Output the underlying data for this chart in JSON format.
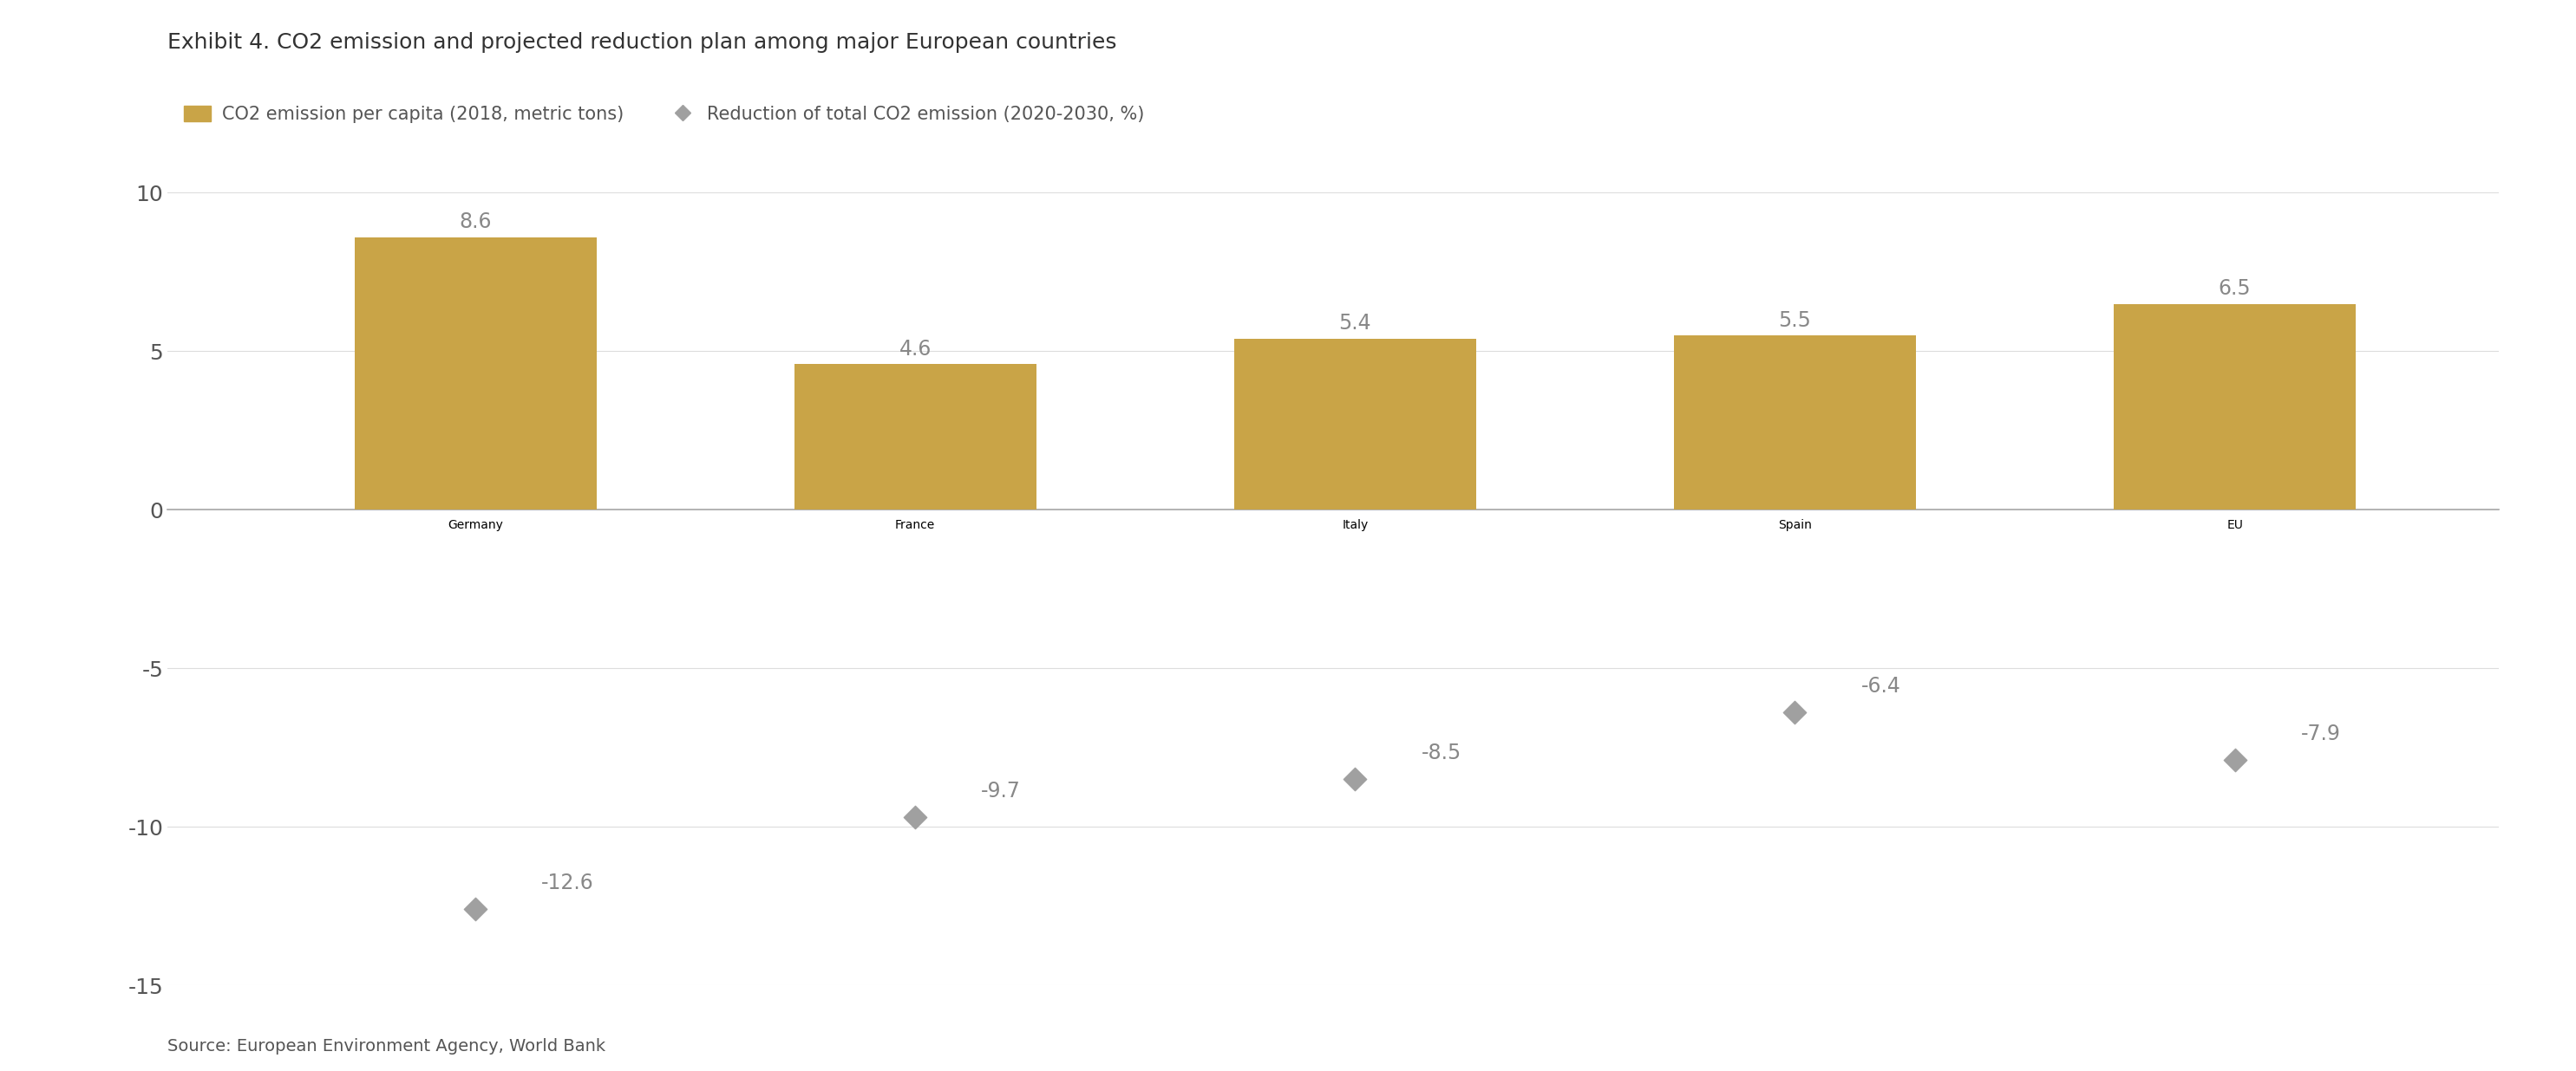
{
  "title": "Exhibit 4. CO2 emission and projected reduction plan among major European countries",
  "categories": [
    "Germany",
    "France",
    "Italy",
    "Spain",
    "EU"
  ],
  "bar_values": [
    8.6,
    4.6,
    5.4,
    5.5,
    6.5
  ],
  "scatter_values": [
    -12.6,
    -9.7,
    -8.5,
    -6.4,
    -7.9
  ],
  "bar_color": "#C9A447",
  "scatter_color": "#A0A0A0",
  "bar_label": "CO2 emission per capita (2018, metric tons)",
  "scatter_label": "Reduction of total CO2 emission (2020-2030, %)",
  "ylim": [
    -15,
    10
  ],
  "yticks": [
    -15,
    -10,
    -5,
    0,
    5,
    10
  ],
  "source": "Source: European Environment Agency, World Bank",
  "background_color": "#FFFFFF",
  "title_fontsize": 18,
  "legend_fontsize": 15,
  "tick_fontsize": 18,
  "annotation_fontsize": 17,
  "source_fontsize": 14
}
